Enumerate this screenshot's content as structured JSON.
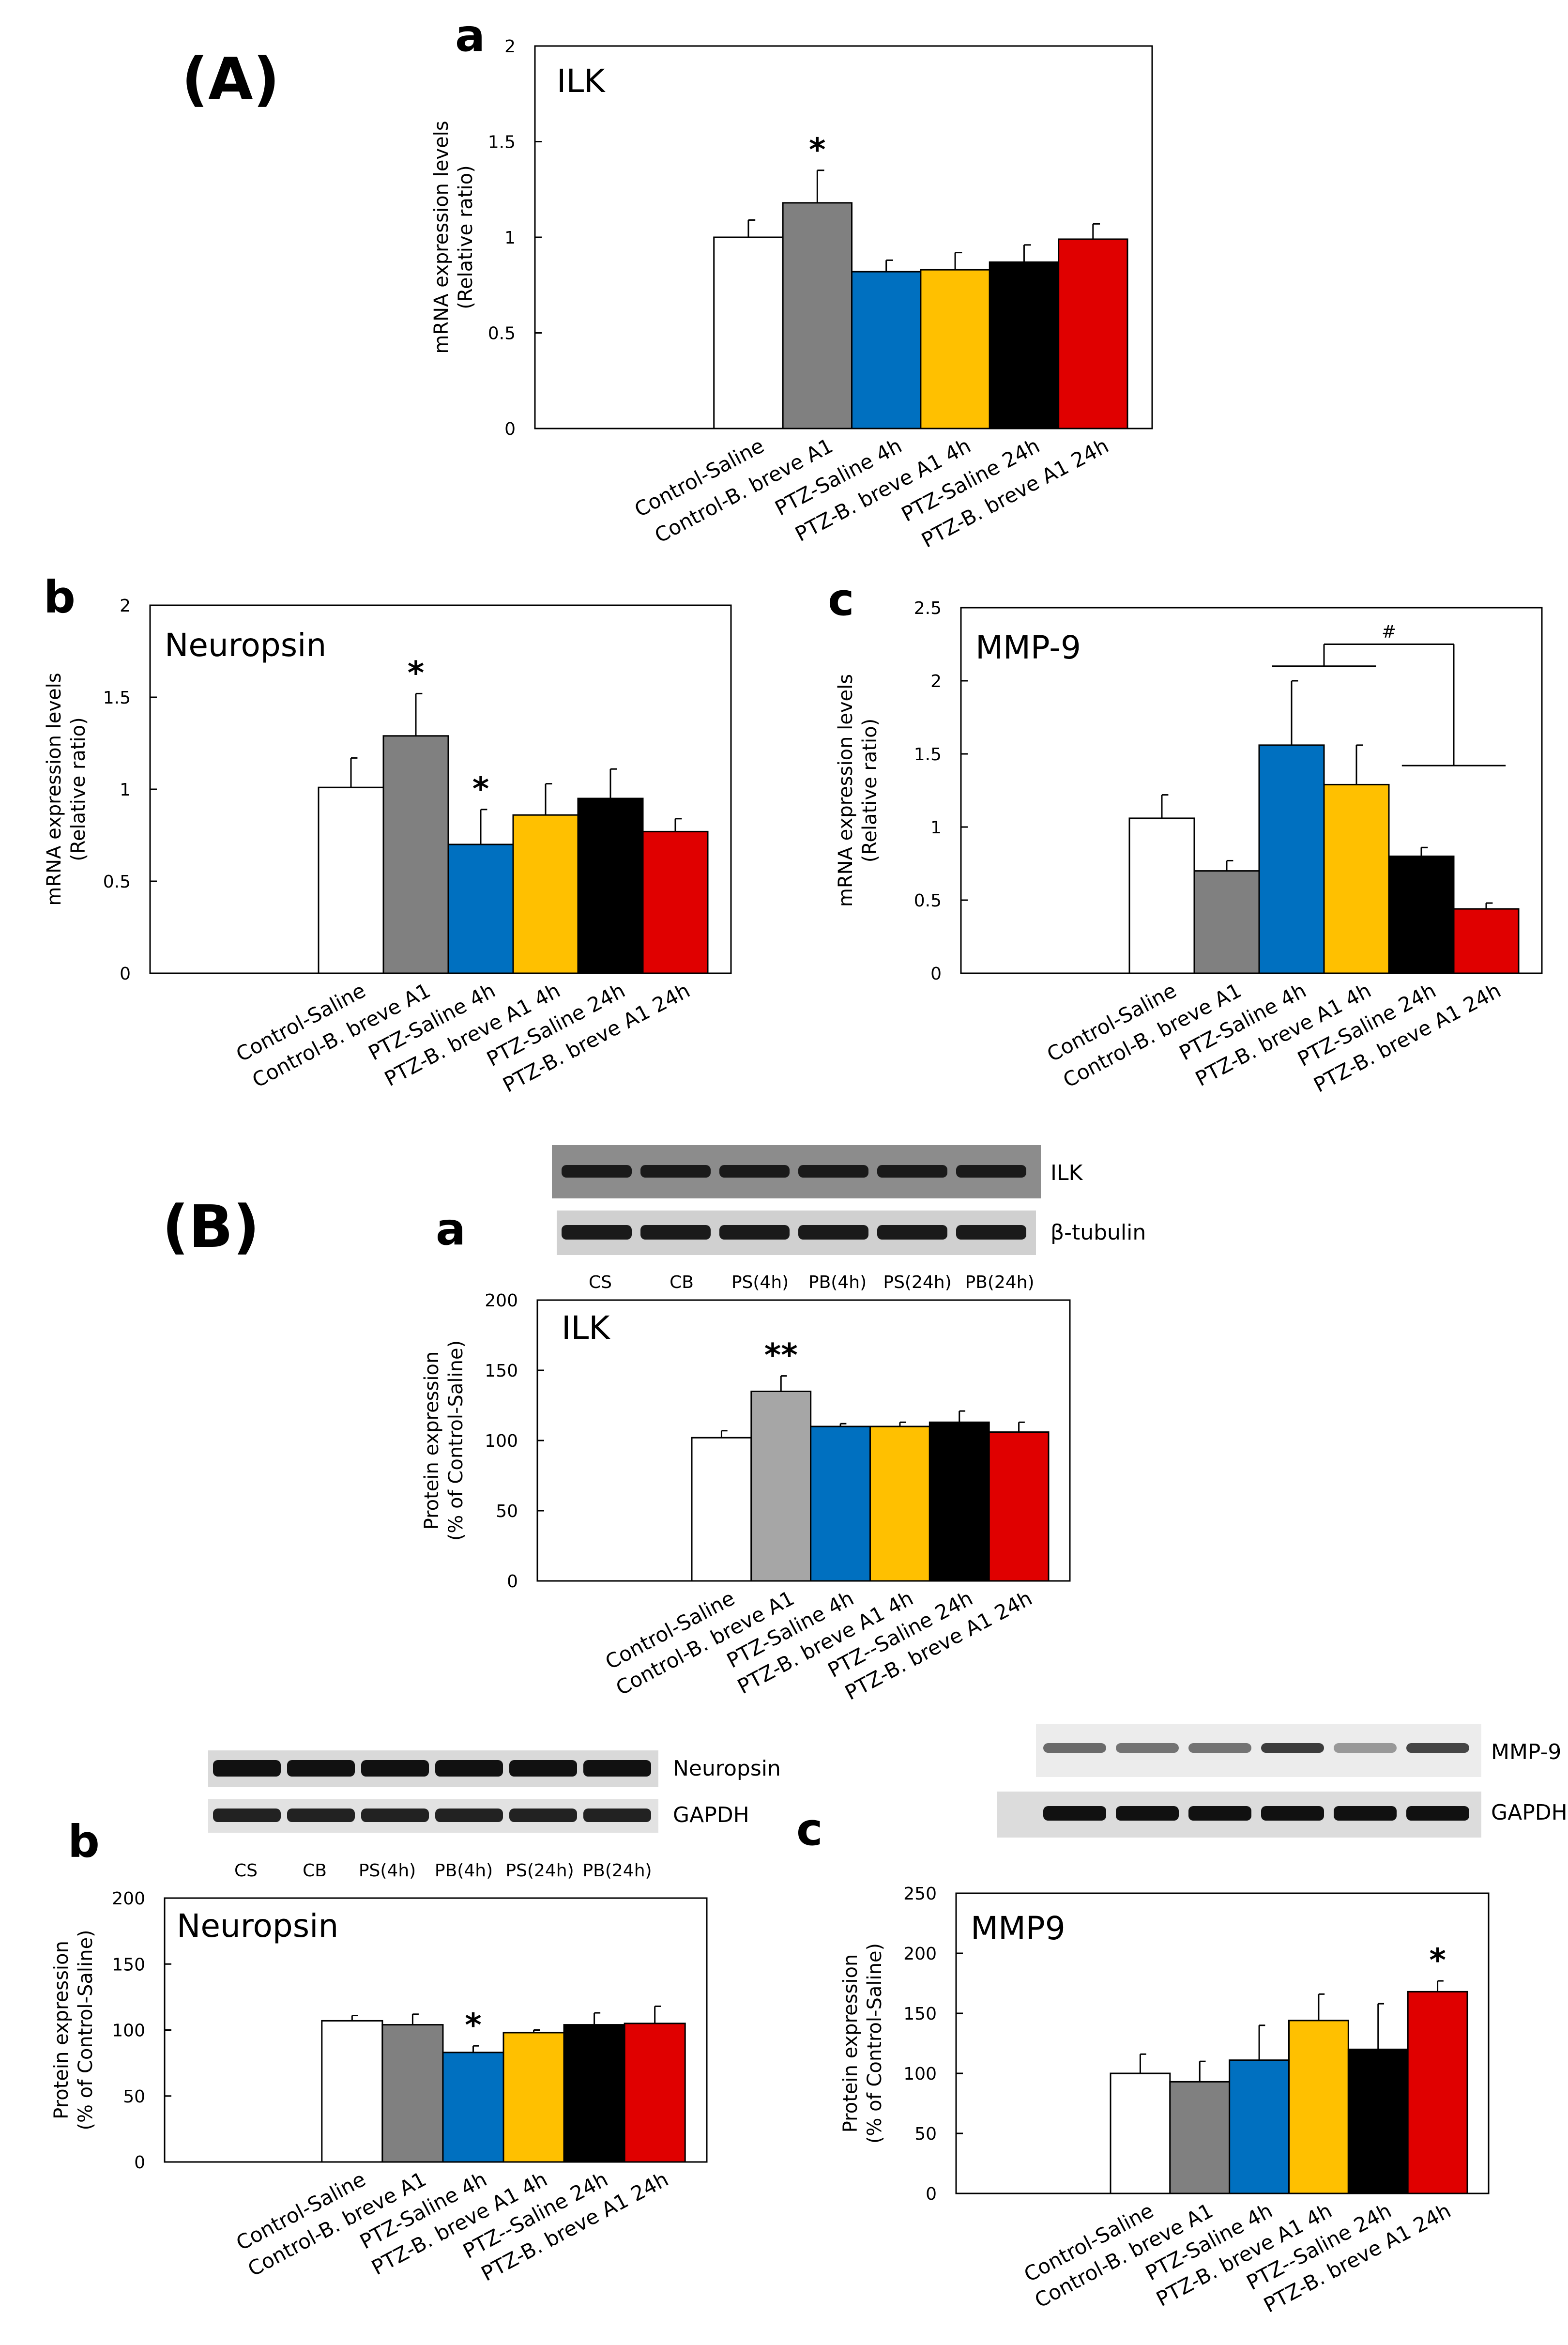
{
  "panel_labels": {
    "A": "(A)",
    "B": "(B)"
  },
  "colors": [
    "#ffffff",
    "#808080",
    "#0070c0",
    "#ffc000",
    "#000000",
    "#e00000"
  ],
  "colors_B_ilk": [
    "#ffffff",
    "#a6a6a6",
    "#0070c0",
    "#ffc000",
    "#000000",
    "#e00000"
  ],
  "chart_data": [
    {
      "id": "A-a",
      "panel": "a",
      "type": "bar",
      "title": "ILK",
      "ylabel": [
        "mRNA expression levels",
        "(Relative ratio)"
      ],
      "yticks": [
        "0",
        "0.5",
        "1",
        "1.5",
        "2"
      ],
      "ylim": [
        0,
        2
      ],
      "categories": [
        "Control-Saline",
        "Control-B. breve A1",
        "PTZ-Saline 4h",
        "PTZ-B. breve A1 4h",
        "PTZ-Saline 24h",
        "PTZ-B. breve A1 24h"
      ],
      "values": [
        1.0,
        1.18,
        0.82,
        0.83,
        0.87,
        0.99
      ],
      "errors": [
        0.09,
        0.17,
        0.06,
        0.09,
        0.09,
        0.08
      ],
      "annotations": [
        {
          "bar": 1,
          "text": "*"
        }
      ]
    },
    {
      "id": "A-b",
      "panel": "b",
      "type": "bar",
      "title": "Neuropsin",
      "ylabel": [
        "mRNA expression levels",
        "(Relative ratio)"
      ],
      "yticks": [
        "0",
        "0.5",
        "1",
        "1.5",
        "2"
      ],
      "ylim": [
        0,
        2
      ],
      "categories": [
        "Control-Saline",
        "Control-B. breve A1",
        "PTZ-Saline 4h",
        "PTZ-B. breve A1 4h",
        "PTZ-Saline 24h",
        "PTZ-B. breve A1 24h"
      ],
      "values": [
        1.01,
        1.29,
        0.7,
        0.86,
        0.95,
        0.77
      ],
      "errors": [
        0.16,
        0.23,
        0.19,
        0.17,
        0.16,
        0.07
      ],
      "annotations": [
        {
          "bar": 1,
          "text": "*"
        },
        {
          "bar": 2,
          "text": "*"
        }
      ]
    },
    {
      "id": "A-c",
      "panel": "c",
      "type": "bar",
      "title": "MMP-9",
      "ylabel": [
        "mRNA expression levels",
        "(Relative ratio)"
      ],
      "yticks": [
        "0",
        "0.5",
        "1",
        "1.5",
        "2",
        "2.5"
      ],
      "ylim": [
        0,
        2.5
      ],
      "categories": [
        "Control-Saline",
        "Control-B. breve A1",
        "PTZ-Saline 4h",
        "PTZ-B. breve A1 4h",
        "PTZ-Saline 24h",
        "PTZ-B. breve A1 24h"
      ],
      "values": [
        1.06,
        0.7,
        1.56,
        1.29,
        0.8,
        0.44
      ],
      "errors": [
        0.16,
        0.07,
        0.44,
        0.27,
        0.06,
        0.04
      ],
      "annotations": [],
      "bracket": {
        "text": "#",
        "left_bars": [
          2,
          3
        ],
        "right_bars": [
          4,
          5
        ],
        "left_y": 2.1,
        "right_y": 1.42,
        "top_y": 2.25
      }
    },
    {
      "id": "B-a",
      "panel": "a",
      "type": "bar",
      "title": "ILK",
      "ylabel": [
        "Protein expression",
        "(% of Control-Saline)"
      ],
      "yticks": [
        "0",
        "50",
        "100",
        "150",
        "200"
      ],
      "ylim": [
        0,
        200
      ],
      "categories": [
        "Control-Saline",
        "Control-B. breve A1",
        "PTZ-Saline 4h",
        "PTZ-B. breve A1 4h",
        "PTZ--Saline 24h",
        "PTZ-B. breve A1 24h"
      ],
      "values": [
        102,
        135,
        110,
        110,
        113,
        106
      ],
      "errors": [
        5,
        11,
        2,
        3,
        8,
        7
      ],
      "annotations": [
        {
          "bar": 1,
          "text": "**"
        }
      ]
    },
    {
      "id": "B-b",
      "panel": "b",
      "type": "bar",
      "title": "Neuropsin",
      "ylabel": [
        "Protein expression",
        "(% of Control-Saline)"
      ],
      "yticks": [
        "0",
        "50",
        "100",
        "150",
        "200"
      ],
      "ylim": [
        0,
        200
      ],
      "categories": [
        "Control-Saline",
        "Control-B. breve A1",
        "PTZ-Saline 4h",
        "PTZ-B. breve A1 4h",
        "PTZ--Saline 24h",
        "PTZ-B. breve A1 24h"
      ],
      "values": [
        107,
        104,
        83,
        98,
        104,
        105
      ],
      "errors": [
        4,
        8,
        5,
        2,
        9,
        13
      ],
      "annotations": [
        {
          "bar": 2,
          "text": "*"
        }
      ]
    },
    {
      "id": "B-c",
      "panel": "c",
      "type": "bar",
      "title": "MMP9",
      "ylabel": [
        "Protein expression",
        "(% of Control-Saline)"
      ],
      "yticks": [
        "0",
        "50",
        "100",
        "150",
        "200",
        "250"
      ],
      "ylim": [
        0,
        250
      ],
      "categories": [
        "Control-Saline",
        "Control-B. breve A1",
        "PTZ-Saline 4h",
        "PTZ-B. breve A1 4h",
        "PTZ--Saline 24h",
        "PTZ-B. breve A1 24h"
      ],
      "values": [
        100,
        93,
        111,
        144,
        120,
        168
      ],
      "errors": [
        16,
        17,
        29,
        22,
        38,
        9
      ],
      "annotations": [
        {
          "bar": 5,
          "text": "*"
        }
      ]
    }
  ],
  "blots": [
    {
      "id": "ilk",
      "rows": [
        "ILK",
        "β-tubulin"
      ],
      "lanes": [
        "CS",
        "CB",
        "PS(4h)",
        "PB(4h)",
        "PS(24h)",
        "PB(24h)"
      ]
    },
    {
      "id": "neuropsin",
      "rows": [
        "Neuropsin",
        "GAPDH"
      ],
      "lanes": [
        "CS",
        "CB",
        "PS(4h)",
        "PB(4h)",
        "PS(24h)",
        "PB(24h)"
      ]
    },
    {
      "id": "mmp9",
      "rows": [
        "MMP-9",
        "GAPDH"
      ],
      "lanes": []
    }
  ]
}
